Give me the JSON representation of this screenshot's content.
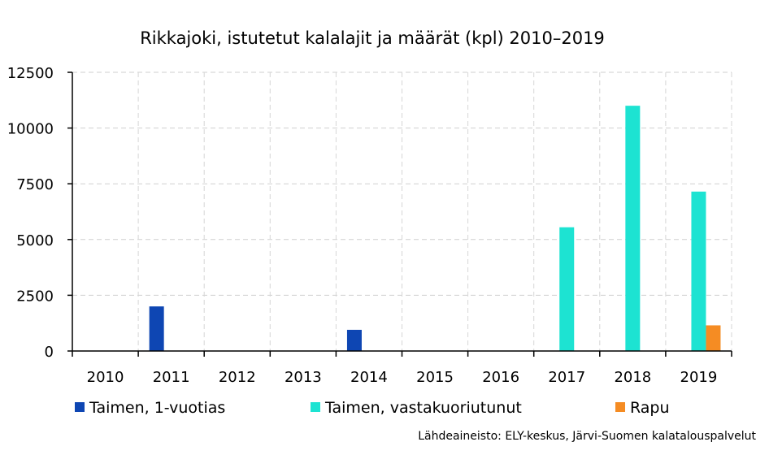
{
  "chart_data": {
    "type": "bar",
    "title": "Rikkajoki, istutetut kalalajit ja määrät (kpl) 2010–2019",
    "xlabel": "",
    "ylabel": "",
    "categories": [
      "2010",
      "2011",
      "2012",
      "2013",
      "2014",
      "2015",
      "2016",
      "2017",
      "2018",
      "2019"
    ],
    "series": [
      {
        "name": "Taimen, 1-vuotias",
        "color": "#0e46b3",
        "values": [
          0,
          2000,
          0,
          0,
          950,
          0,
          0,
          0,
          0,
          0
        ]
      },
      {
        "name": "Taimen, vastakuoriutunut",
        "color": "#1de3d2",
        "values": [
          0,
          0,
          0,
          0,
          0,
          0,
          0,
          5550,
          11000,
          7150
        ]
      },
      {
        "name": "Rapu",
        "color": "#f58c23",
        "values": [
          0,
          0,
          0,
          0,
          0,
          0,
          0,
          0,
          0,
          1150
        ]
      }
    ],
    "ylim": [
      0,
      12500
    ],
    "yticks": [
      0,
      2500,
      5000,
      7500,
      10000,
      12500
    ],
    "grid": true,
    "legend_position": "bottom",
    "source": "Lähdeaineisto: ELY-keskus, Järvi-Suomen kalatalouspalvelut"
  }
}
